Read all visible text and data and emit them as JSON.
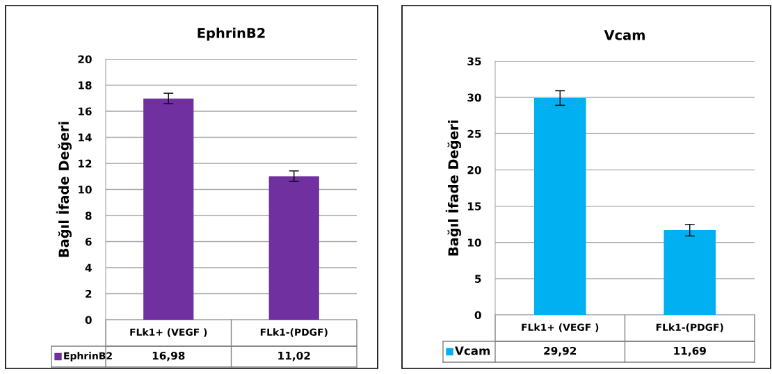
{
  "chart_data": [
    {
      "type": "bar",
      "title": "EphrinB2",
      "ylabel": "Bağıl İfade Değeri",
      "categories": [
        "FLk1+ (VEGF )",
        "FLk1-(PDGF)"
      ],
      "ylim": [
        0,
        20
      ],
      "yticks": [
        0,
        2,
        4,
        6,
        8,
        10,
        12,
        14,
        16,
        18,
        20
      ],
      "grid": "y",
      "legend": "bottom",
      "series": [
        {
          "name": "EphrinB2",
          "color": "#7030a0",
          "values": [
            16.98,
            11.02
          ],
          "errors": [
            0.4,
            0.4
          ],
          "value_labels": [
            "16,98",
            "11,02"
          ]
        }
      ]
    },
    {
      "type": "bar",
      "title": "Vcam",
      "ylabel": "Bağıl İfade Değeri",
      "categories": [
        "FLk1+ (VEGF )",
        "FLk1-(PDGF)"
      ],
      "ylim": [
        0,
        35
      ],
      "yticks": [
        0,
        5,
        10,
        15,
        20,
        25,
        30,
        35
      ],
      "grid": "y",
      "legend": "bottom",
      "series": [
        {
          "name": "Vcam",
          "color": "#00b0f0",
          "values": [
            29.92,
            11.69
          ],
          "errors": [
            1.0,
            0.8
          ],
          "value_labels": [
            "29,92",
            "11,69"
          ]
        }
      ]
    }
  ]
}
